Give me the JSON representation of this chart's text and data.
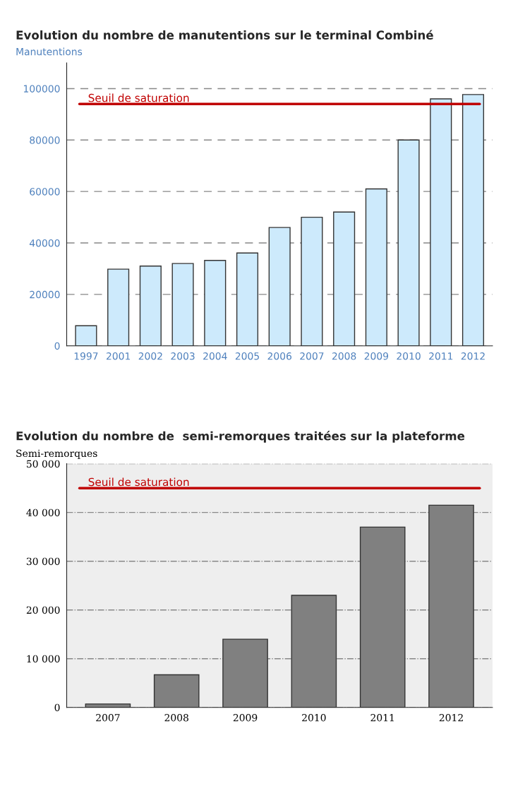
{
  "chart_data": [
    {
      "type": "bar",
      "title": "Evolution du nombre de manutentions sur le terminal Combiné",
      "ylabel": "Manutentions",
      "categories": [
        "1997",
        "2001",
        "2002",
        "2003",
        "2004",
        "2005",
        "2006",
        "2007",
        "2008",
        "2009",
        "2010",
        "2011",
        "2012"
      ],
      "series": [
        {
          "color": "#cdeafc",
          "values": [
            7800,
            29800,
            31000,
            32000,
            33200,
            36100,
            46000,
            50000,
            52000,
            61000,
            80000,
            96000,
            97700
          ]
        }
      ],
      "ylim": [
        0,
        110000
      ],
      "yticks": [
        0,
        20000,
        40000,
        60000,
        80000,
        100000
      ],
      "grid": "y",
      "line_style": "dashed",
      "legend": false,
      "ref_lines": [
        {
          "axis": "y",
          "value": 94000,
          "label": "Seuil de saturation",
          "color": "#c00000"
        }
      ]
    },
    {
      "type": "bar",
      "title": "Evolution du nombre de  semi-remorques traitées sur la plateforme",
      "ylabel": "Semi-remorques",
      "categories": [
        "2007",
        "2008",
        "2009",
        "2010",
        "2011",
        "2012"
      ],
      "series": [
        {
          "color": "#808080",
          "values": [
            700,
            6700,
            14000,
            23000,
            37000,
            41500
          ]
        }
      ],
      "ylim": [
        0,
        50000
      ],
      "yticks": [
        {
          "value": 0,
          "label": "0"
        },
        {
          "value": 10000,
          "label": "10 000"
        },
        {
          "value": 20000,
          "label": "20 000"
        },
        {
          "value": 30000,
          "label": "30 000"
        },
        {
          "value": 40000,
          "label": "40 000"
        },
        {
          "value": 50000,
          "label": "50 000"
        }
      ],
      "grid": "y",
      "line_style": "dashdot",
      "legend": false,
      "ref_lines": [
        {
          "axis": "y",
          "value": 45000,
          "label": "Seuil de saturation",
          "color": "#c00000"
        }
      ]
    }
  ]
}
